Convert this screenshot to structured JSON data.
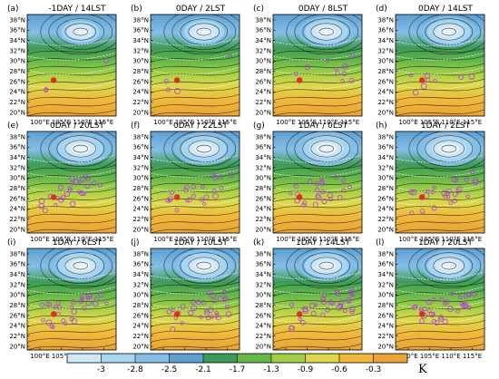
{
  "figure": {
    "lat_labels": [
      "38°N",
      "36°N",
      "34°N",
      "32°N",
      "30°N",
      "28°N",
      "26°N",
      "24°N",
      "22°N",
      "20°N"
    ],
    "lon_labels": [
      "100°E",
      "105°E",
      "110°E",
      "115°E"
    ],
    "panels": [
      {
        "letter": "(a)",
        "title": "-1DAY / 14LST",
        "vortex_strength": 0.75,
        "storm_points": 3
      },
      {
        "letter": "(b)",
        "title": "0DAY / 2LST",
        "vortex_strength": 0.8,
        "storm_points": 4
      },
      {
        "letter": "(c)",
        "title": "0DAY / 8LST",
        "vortex_strength": 0.85,
        "storm_points": 10
      },
      {
        "letter": "(d)",
        "title": "0DAY / 14LST",
        "vortex_strength": 0.85,
        "storm_points": 8
      },
      {
        "letter": "(e)",
        "title": "0DAY / 20LST",
        "vortex_strength": 0.9,
        "storm_points": 26
      },
      {
        "letter": "(f)",
        "title": "0DAY / 22LST",
        "vortex_strength": 0.9,
        "storm_points": 22
      },
      {
        "letter": "(g)",
        "title": "1DAY / 0LST",
        "vortex_strength": 0.95,
        "storm_points": 24
      },
      {
        "letter": "(h)",
        "title": "1DAY / 2LST",
        "vortex_strength": 0.95,
        "storm_points": 26
      },
      {
        "letter": "(i)",
        "title": "1DAY / 6LST",
        "vortex_strength": 0.9,
        "storm_points": 30
      },
      {
        "letter": "(j)",
        "title": "1DAY / 10LST",
        "vortex_strength": 0.9,
        "storm_points": 30
      },
      {
        "letter": "(k)",
        "title": "1DAY / 14LST",
        "vortex_strength": 0.85,
        "storm_points": 32
      },
      {
        "letter": "(l)",
        "title": "1DAY / 20LST",
        "vortex_strength": 0.85,
        "storm_points": 34
      }
    ]
  },
  "colorbar": {
    "labels": [
      "-3",
      "-2.8",
      "-2.5",
      "-2.1",
      "-1.7",
      "-1.3",
      "-0.9",
      "-0.6",
      "-0.3"
    ],
    "colors": [
      "#cfe8f6",
      "#a9d5f0",
      "#85bfe6",
      "#5d9fd2",
      "#3d9b55",
      "#66b84a",
      "#a2cf47",
      "#dcd84c",
      "#f0b93b",
      "#e9a336"
    ],
    "unit": "K"
  },
  "colors": {
    "contour_text_bg": "#ffffff",
    "stream": "#111111",
    "storm_outline": "#b23cd6",
    "storm_core": "#e02020"
  }
}
